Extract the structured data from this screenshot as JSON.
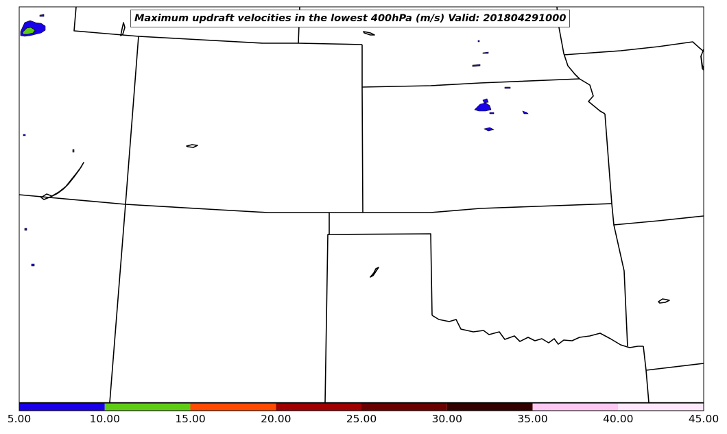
{
  "title": "Maximum updraft velocities in the lowest 400hPa (m/s) Valid: 201804291000",
  "colorbar": {
    "min": 5,
    "max": 45,
    "ticks": [
      "5.00",
      "10.00",
      "15.00",
      "20.00",
      "25.00",
      "30.00",
      "35.00",
      "40.00",
      "45.00"
    ],
    "tick_values": [
      5,
      10,
      15,
      20,
      25,
      30,
      35,
      40,
      45
    ],
    "colors": [
      "#1a00e8",
      "#5fcc14",
      "#ff4a00",
      "#a00000",
      "#6a0000",
      "#320000",
      "#ffc8f4",
      "#ffe8fb"
    ]
  }
}
